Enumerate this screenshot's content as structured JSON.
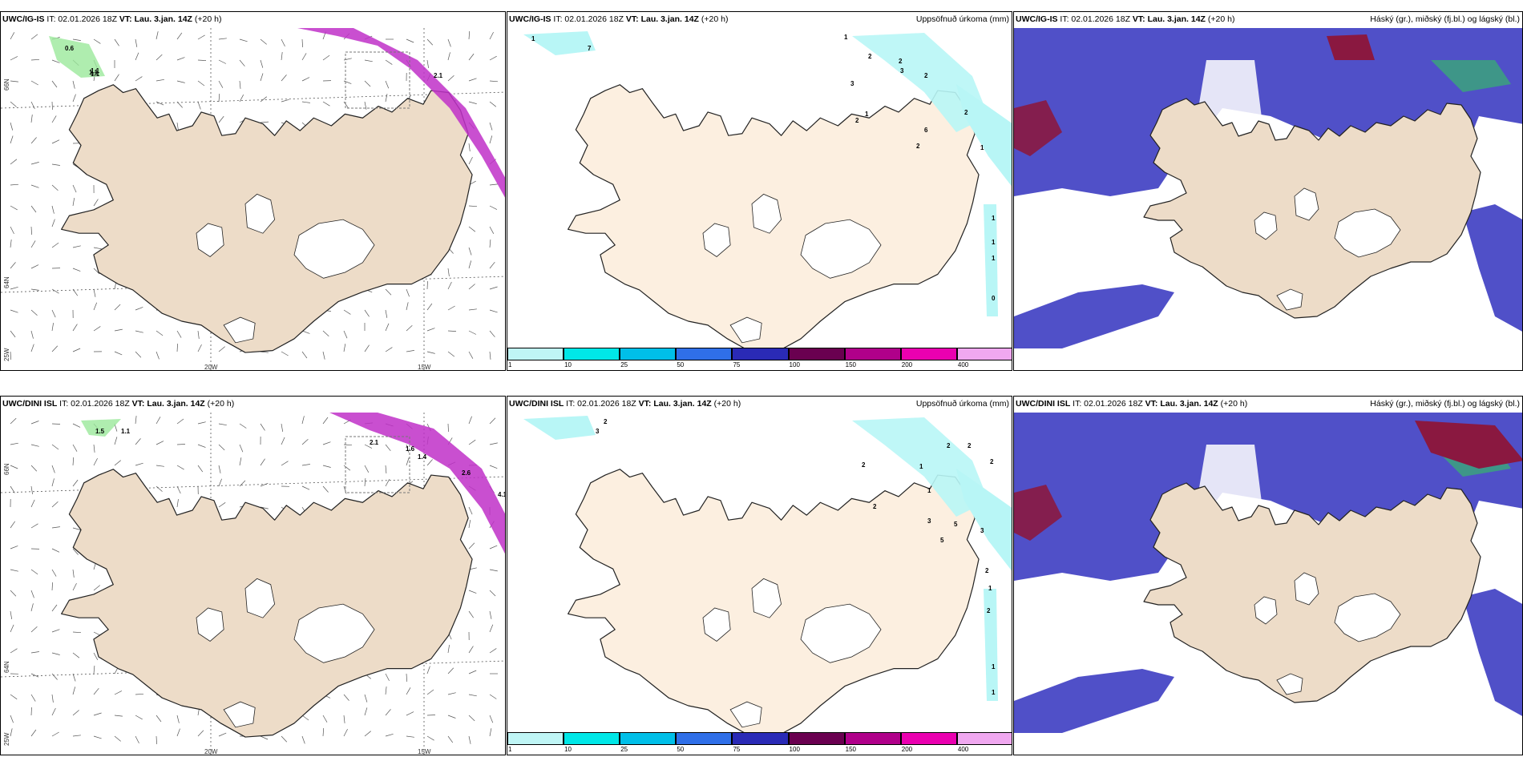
{
  "rows": [
    {
      "wind": {
        "model": "UWC/IG-IS",
        "it_label": "IT: 02.01.2026 18Z",
        "vt_label": "VT: Lau. 3.jan. 14Z",
        "lead": "(+20 h)",
        "lat_labels": [
          "66N",
          "64N",
          "25W"
        ],
        "lon_labels": [
          "20W",
          "15W"
        ],
        "values": [
          "0.6",
          "1.1",
          "1.1",
          "1.1",
          "2.1"
        ]
      },
      "precip": {
        "model": "UWC/IG-IS",
        "it_label": "IT: 02.01.2026 18Z",
        "vt_label": "VT: Lau. 3.jan. 14Z",
        "lead": "(+20 h)",
        "right_title": "Uppsöfnuð úrkoma (mm)",
        "values": [
          "1",
          "7",
          "1",
          "2",
          "2",
          "3",
          "3",
          "2",
          "1",
          "2",
          "2",
          "6",
          "2",
          "1",
          "1",
          "1",
          "1",
          "0"
        ]
      },
      "cloud": {
        "model": "UWC/IG-IS",
        "it_label": "IT: 02.01.2026 18Z",
        "vt_label": "VT: Lau. 3.jan. 14Z",
        "lead": "(+20 h)",
        "right_title": "Háský (gr.), miðský (fj.bl.) og lágský (bl.)"
      }
    },
    {
      "wind": {
        "model": "UWC/DINI ISL",
        "it_label": "IT: 02.01.2026 18Z",
        "vt_label": "VT: Lau. 3.jan. 14Z",
        "lead": "(+20 h)",
        "lat_labels": [
          "66N",
          "64N",
          "25W"
        ],
        "lon_labels": [
          "20W",
          "15W"
        ],
        "values": [
          "1.5",
          "1.1",
          "2.1",
          "1.6",
          "1.4",
          "2.6",
          "4.1"
        ]
      },
      "precip": {
        "model": "UWC/DINI ISL",
        "it_label": "IT: 02.01.2026 18Z",
        "vt_label": "VT: Lau. 3.jan. 14Z",
        "lead": "(+20 h)",
        "right_title": "Uppsöfnuð úrkoma (mm)",
        "values": [
          "3",
          "2",
          "2",
          "2",
          "2",
          "2",
          "1",
          "1",
          "2",
          "3",
          "5",
          "3",
          "5",
          "2",
          "1",
          "2",
          "1",
          "1"
        ]
      },
      "cloud": {
        "model": "UWC/DINI ISL",
        "it_label": "IT: 02.01.2026 18Z",
        "vt_label": "VT: Lau. 3.jan. 14Z",
        "lead": "(+20 h)",
        "right_title": "Háský (gr.), miðský (fj.bl.) og lágský (bl.)"
      }
    }
  ],
  "colorbar": {
    "labels": [
      "1",
      "10",
      "25",
      "50",
      "75",
      "100",
      "150",
      "200",
      "400"
    ],
    "colors": [
      "#bff5f5",
      "#00e7e7",
      "#00bfe8",
      "#2f6fe8",
      "#2a2ab6",
      "#6a0050",
      "#b0008a",
      "#ea00b0",
      "#f0a8f0"
    ]
  },
  "colors": {
    "land": "#eddcc8",
    "land_precip": "#fcefe0",
    "ice": "#ffffff",
    "coast": "#222222",
    "precip_light": "#b8f6f6",
    "wind_magenta": "#c030c8",
    "wind_green": "#9be89b",
    "cloud_low": "#5050c8",
    "cloud_mid": "#3a7ad8",
    "cloud_high": "#3aa878",
    "cloud_red": "#8a1840"
  }
}
